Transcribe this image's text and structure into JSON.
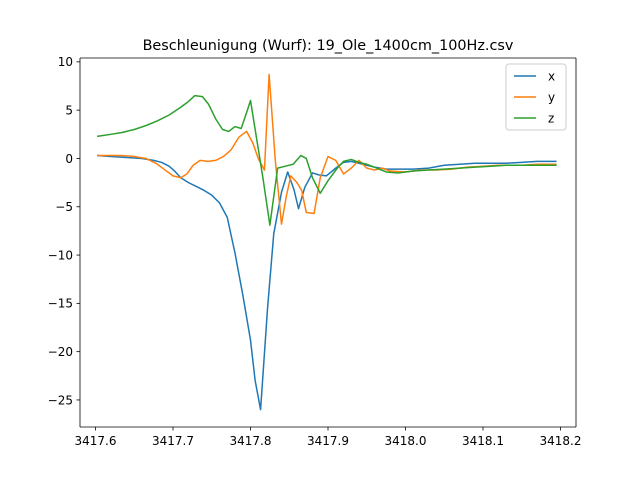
{
  "chart_data": {
    "type": "line",
    "title": "Beschleunigung (Wurf): 19_Ole_1400cm_100Hz.csv",
    "xlabel": "",
    "ylabel": "",
    "xlim": [
      3417.58,
      3418.22
    ],
    "ylim": [
      -27.8,
      10.4
    ],
    "x_ticks": [
      3417.6,
      3417.7,
      3417.8,
      3417.9,
      3418.0,
      3418.1,
      3418.2
    ],
    "x_tick_labels": [
      "3417.6",
      "3417.7",
      "3417.8",
      "3417.9",
      "3418.0",
      "3418.1",
      "3418.2"
    ],
    "y_ticks": [
      10,
      5,
      0,
      -5,
      -10,
      -15,
      -20,
      -25
    ],
    "y_tick_labels": [
      "10",
      "5",
      "0",
      "−5",
      "−10",
      "−15",
      "−20",
      "−25"
    ],
    "grid": false,
    "legend_position": "top-right",
    "series": [
      {
        "name": "x",
        "color": "#1f77b4",
        "points": [
          [
            3417.603,
            0.3
          ],
          [
            3417.62,
            0.2
          ],
          [
            3417.64,
            0.1
          ],
          [
            3417.66,
            0.0
          ],
          [
            3417.675,
            -0.2
          ],
          [
            3417.685,
            -0.4
          ],
          [
            3417.695,
            -0.8
          ],
          [
            3417.702,
            -1.3
          ],
          [
            3417.71,
            -2.0
          ],
          [
            3417.72,
            -2.5
          ],
          [
            3417.73,
            -2.9
          ],
          [
            3417.74,
            -3.3
          ],
          [
            3417.75,
            -3.8
          ],
          [
            3417.76,
            -4.6
          ],
          [
            3417.77,
            -6.1
          ],
          [
            3417.78,
            -9.8
          ],
          [
            3417.79,
            -14.1
          ],
          [
            3417.8,
            -18.8
          ],
          [
            3417.806,
            -23.0
          ],
          [
            3417.813,
            -26.0
          ],
          [
            3417.822,
            -15.5
          ],
          [
            3417.83,
            -7.8
          ],
          [
            3417.84,
            -3.5
          ],
          [
            3417.848,
            -1.4
          ],
          [
            3417.856,
            -3.2
          ],
          [
            3417.862,
            -5.2
          ],
          [
            3417.87,
            -3.0
          ],
          [
            3417.88,
            -1.5
          ],
          [
            3417.888,
            -1.7
          ],
          [
            3417.898,
            -1.8
          ],
          [
            3417.91,
            -1.0
          ],
          [
            3417.92,
            -0.4
          ],
          [
            3417.93,
            -0.3
          ],
          [
            3417.945,
            -0.6
          ],
          [
            3417.96,
            -0.9
          ],
          [
            3417.975,
            -1.1
          ],
          [
            3417.99,
            -1.1
          ],
          [
            3418.01,
            -1.1
          ],
          [
            3418.03,
            -1.0
          ],
          [
            3418.05,
            -0.7
          ],
          [
            3418.07,
            -0.6
          ],
          [
            3418.09,
            -0.5
          ],
          [
            3418.11,
            -0.5
          ],
          [
            3418.13,
            -0.5
          ],
          [
            3418.15,
            -0.4
          ],
          [
            3418.17,
            -0.3
          ],
          [
            3418.194,
            -0.3
          ]
        ]
      },
      {
        "name": "y",
        "color": "#ff7f0e",
        "points": [
          [
            3417.603,
            0.3
          ],
          [
            3417.62,
            0.3
          ],
          [
            3417.635,
            0.3
          ],
          [
            3417.65,
            0.2
          ],
          [
            3417.665,
            0.0
          ],
          [
            3417.678,
            -0.5
          ],
          [
            3417.69,
            -1.2
          ],
          [
            3417.7,
            -1.8
          ],
          [
            3417.71,
            -2.0
          ],
          [
            3417.718,
            -1.6
          ],
          [
            3417.726,
            -0.7
          ],
          [
            3417.735,
            -0.2
          ],
          [
            3417.745,
            -0.3
          ],
          [
            3417.755,
            -0.2
          ],
          [
            3417.765,
            0.2
          ],
          [
            3417.775,
            0.9
          ],
          [
            3417.785,
            2.2
          ],
          [
            3417.795,
            2.8
          ],
          [
            3417.803,
            1.6
          ],
          [
            3417.81,
            0.0
          ],
          [
            3417.818,
            -1.2
          ],
          [
            3417.824,
            8.7
          ],
          [
            3417.832,
            -0.2
          ],
          [
            3417.84,
            -6.8
          ],
          [
            3417.846,
            -4.0
          ],
          [
            3417.852,
            -1.8
          ],
          [
            3417.86,
            -2.5
          ],
          [
            3417.866,
            -3.3
          ],
          [
            3417.872,
            -5.6
          ],
          [
            3417.882,
            -5.7
          ],
          [
            3417.89,
            -2.0
          ],
          [
            3417.9,
            0.2
          ],
          [
            3417.91,
            -0.2
          ],
          [
            3417.92,
            -1.6
          ],
          [
            3417.93,
            -1.0
          ],
          [
            3417.94,
            -0.2
          ],
          [
            3417.95,
            -1.0
          ],
          [
            3417.96,
            -1.2
          ],
          [
            3417.97,
            -1.0
          ],
          [
            3417.98,
            -1.3
          ],
          [
            3418.0,
            -1.4
          ],
          [
            3418.02,
            -1.2
          ],
          [
            3418.04,
            -1.2
          ],
          [
            3418.06,
            -1.1
          ],
          [
            3418.08,
            -0.9
          ],
          [
            3418.1,
            -0.8
          ],
          [
            3418.12,
            -0.7
          ],
          [
            3418.15,
            -0.7
          ],
          [
            3418.17,
            -0.6
          ],
          [
            3418.194,
            -0.6
          ]
        ]
      },
      {
        "name": "z",
        "color": "#2ca02c",
        "points": [
          [
            3417.603,
            2.3
          ],
          [
            3417.62,
            2.5
          ],
          [
            3417.635,
            2.7
          ],
          [
            3417.65,
            3.0
          ],
          [
            3417.665,
            3.4
          ],
          [
            3417.68,
            3.9
          ],
          [
            3417.695,
            4.5
          ],
          [
            3417.71,
            5.3
          ],
          [
            3417.72,
            5.9
          ],
          [
            3417.728,
            6.5
          ],
          [
            3417.738,
            6.4
          ],
          [
            3417.746,
            5.6
          ],
          [
            3417.755,
            4.1
          ],
          [
            3417.764,
            3.0
          ],
          [
            3417.772,
            2.8
          ],
          [
            3417.78,
            3.3
          ],
          [
            3417.788,
            3.1
          ],
          [
            3417.796,
            5.0
          ],
          [
            3417.8,
            6.0
          ],
          [
            3417.808,
            2.0
          ],
          [
            3417.816,
            -2.0
          ],
          [
            3417.825,
            -6.9
          ],
          [
            3417.835,
            -1.0
          ],
          [
            3417.845,
            -0.8
          ],
          [
            3417.855,
            -0.6
          ],
          [
            3417.865,
            0.3
          ],
          [
            3417.872,
            0.0
          ],
          [
            3417.88,
            -2.0
          ],
          [
            3417.89,
            -3.6
          ],
          [
            3417.9,
            -2.3
          ],
          [
            3417.912,
            -1.0
          ],
          [
            3417.92,
            -0.3
          ],
          [
            3417.93,
            -0.1
          ],
          [
            3417.94,
            -0.4
          ],
          [
            3417.95,
            -0.6
          ],
          [
            3417.96,
            -0.9
          ],
          [
            3417.975,
            -1.4
          ],
          [
            3417.99,
            -1.5
          ],
          [
            3418.01,
            -1.3
          ],
          [
            3418.03,
            -1.2
          ],
          [
            3418.05,
            -1.1
          ],
          [
            3418.07,
            -1.0
          ],
          [
            3418.09,
            -0.9
          ],
          [
            3418.11,
            -0.8
          ],
          [
            3418.13,
            -0.7
          ],
          [
            3418.15,
            -0.7
          ],
          [
            3418.17,
            -0.7
          ],
          [
            3418.194,
            -0.7
          ]
        ]
      }
    ]
  }
}
